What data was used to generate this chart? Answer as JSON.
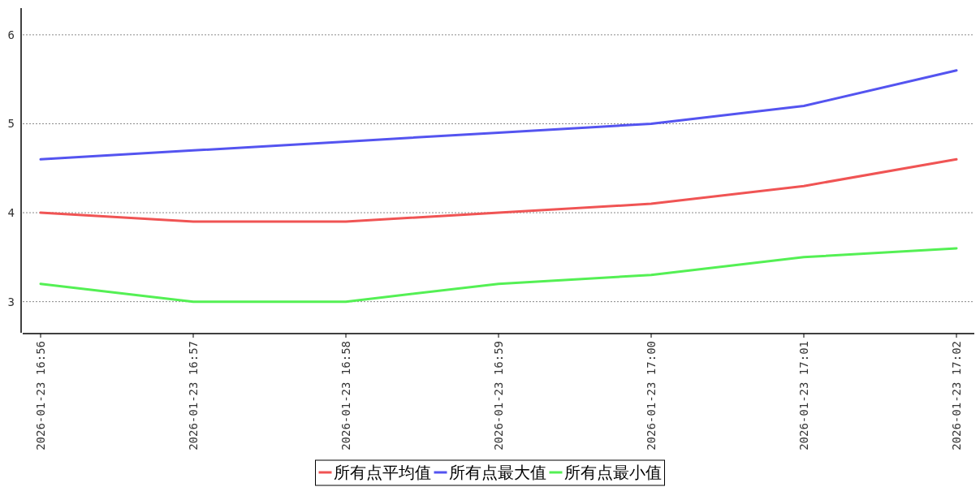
{
  "chart_data": {
    "type": "line",
    "categories": [
      "2026-01-23 16:56",
      "2026-01-23 16:57",
      "2026-01-23 16:58",
      "2026-01-23 16:59",
      "2026-01-23 17:00",
      "2026-01-23 17:01",
      "2026-01-23 17:02"
    ],
    "series": [
      {
        "name": "所有点平均值",
        "color": "#f05454",
        "values": [
          4.0,
          3.9,
          3.9,
          4.0,
          4.1,
          4.3,
          4.6
        ]
      },
      {
        "name": "所有点最大值",
        "color": "#5454f0",
        "values": [
          4.6,
          4.7,
          4.8,
          4.9,
          5.0,
          5.2,
          5.6
        ]
      },
      {
        "name": "所有点最小值",
        "color": "#54f054",
        "values": [
          3.2,
          3.0,
          3.0,
          3.2,
          3.3,
          3.5,
          3.6
        ]
      }
    ],
    "ylim": [
      2.65,
      6.3
    ],
    "yticks": [
      3,
      4,
      5,
      6
    ],
    "grid": "y",
    "legend": "bottom"
  }
}
